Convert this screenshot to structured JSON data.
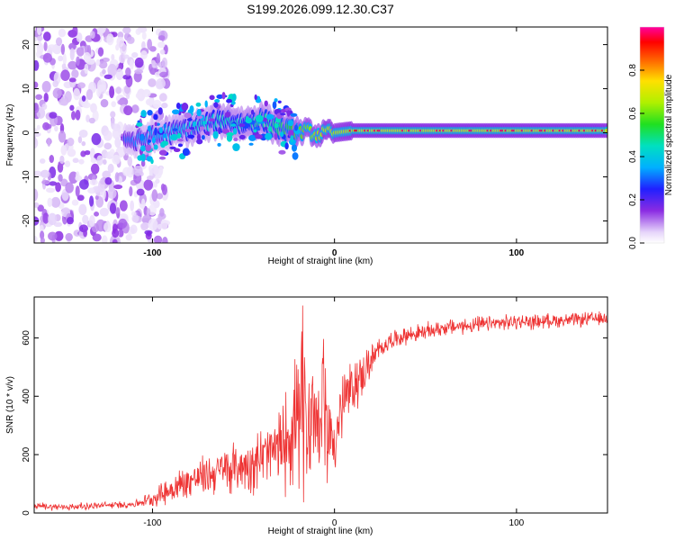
{
  "title": "S199.2026.099.12.30.C37",
  "chart_data": [
    {
      "type": "heatmap",
      "title": "S199.2026.099.12.30.C37",
      "xlabel": "Height of straight line (km)",
      "ylabel": "Frequency (Hz)",
      "xlim": [
        -165,
        150
      ],
      "ylim": [
        -25,
        24
      ],
      "xticks": [
        -100,
        0,
        100
      ],
      "xtick_labels": [
        "-100",
        "0",
        "100"
      ],
      "yticks": [
        -20,
        -10,
        0,
        10,
        20
      ],
      "ytick_labels": [
        "-20",
        "-10",
        "0",
        "10",
        "20"
      ],
      "colorbar": {
        "label": "Normalized spectral amplitude",
        "range": [
          0.0,
          1.0
        ],
        "ticks": [
          0.0,
          0.2,
          0.4,
          0.6,
          0.8
        ],
        "tick_labels": [
          "0.0",
          "0.2",
          "0.4",
          "0.6",
          "0.8"
        ],
        "colormap": "rainbow (white-violet-blue-cyan-green-yellow-red-magenta)"
      },
      "ridge": {
        "description": "peak frequency track vs height",
        "x": [
          -115,
          -110,
          -100,
          -90,
          -80,
          -70,
          -60,
          -50,
          -40,
          -35,
          -30,
          -25,
          -20,
          -15,
          -10,
          -5,
          0,
          10,
          20,
          40,
          60,
          80,
          100,
          120,
          140,
          150
        ],
        "y": [
          -1,
          -2,
          -1,
          0,
          1,
          2,
          3,
          2,
          3,
          2,
          1,
          0.5,
          0,
          0.5,
          -0.5,
          0,
          0,
          0.5,
          0.5,
          0.5,
          0.5,
          0.5,
          0.5,
          0.5,
          0.5,
          0.5
        ],
        "amplitude": [
          0.15,
          0.2,
          0.25,
          0.3,
          0.35,
          0.4,
          0.45,
          0.45,
          0.5,
          0.5,
          0.55,
          0.6,
          0.7,
          0.75,
          0.8,
          0.85,
          0.85,
          0.9,
          0.95,
          0.95,
          0.95,
          0.95,
          0.95,
          0.95,
          0.95,
          0.9
        ]
      },
      "noise_region": {
        "x_range": [
          -165,
          -100
        ],
        "description": "scattered low-amplitude violet blobs across all frequencies"
      }
    },
    {
      "type": "line",
      "color": "#ee3333",
      "xlabel": "Height of straight line (km)",
      "ylabel": "SNR (10 * v/v)",
      "xlim": [
        -165,
        150
      ],
      "ylim": [
        0,
        740
      ],
      "xticks": [
        -100,
        0,
        100
      ],
      "xtick_labels": [
        "-100",
        "0",
        "100"
      ],
      "yticks": [
        0,
        200,
        400,
        600
      ],
      "ytick_labels": [
        "0",
        "200",
        "400",
        "600"
      ],
      "series": [
        {
          "name": "SNR",
          "x": [
            -165,
            -150,
            -130,
            -110,
            -100,
            -90,
            -80,
            -70,
            -60,
            -50,
            -40,
            -30,
            -25,
            -20,
            -15,
            -10,
            -5,
            0,
            5,
            10,
            15,
            20,
            25,
            30,
            40,
            50,
            60,
            70,
            80,
            90,
            100,
            110,
            120,
            130,
            140,
            150
          ],
          "y": [
            25,
            20,
            25,
            30,
            50,
            80,
            110,
            130,
            150,
            160,
            190,
            220,
            280,
            310,
            320,
            330,
            300,
            250,
            380,
            430,
            470,
            520,
            560,
            590,
            610,
            620,
            635,
            640,
            645,
            650,
            655,
            655,
            660,
            660,
            665,
            665
          ],
          "noise_amplitude": [
            12,
            12,
            12,
            12,
            25,
            55,
            60,
            70,
            80,
            90,
            110,
            130,
            200,
            250,
            250,
            200,
            180,
            150,
            120,
            100,
            80,
            60,
            40,
            30,
            30,
            30,
            28,
            28,
            28,
            26,
            26,
            26,
            24,
            24,
            24,
            24
          ]
        }
      ]
    }
  ]
}
